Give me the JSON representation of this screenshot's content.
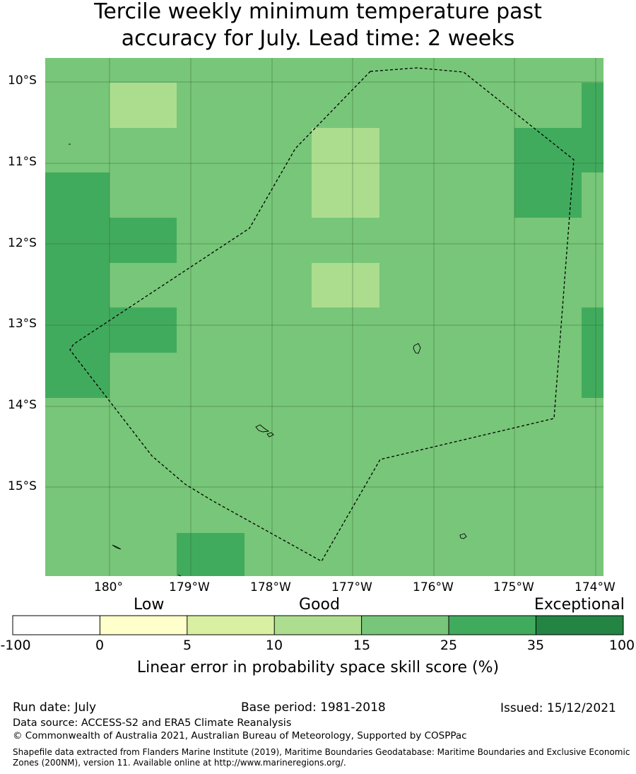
{
  "title": {
    "line1": "Tercile weekly minimum temperature past",
    "line2": "accuracy for July. Lead time: 2 weeks"
  },
  "map": {
    "lat_labels": [
      "10°S",
      "11°S",
      "12°S",
      "13°S",
      "14°S",
      "15°S"
    ],
    "lon_labels": [
      "180°",
      "179°W",
      "178°W",
      "177°W",
      "176°W",
      "175°W",
      "174°W"
    ],
    "colors": {
      "c10_15": "#acdd8e",
      "c15_25": "#78c679",
      "c25_35": "#41ab5d",
      "boundary": "#000000"
    }
  },
  "colorbar": {
    "category_labels": [
      "Low",
      "Good",
      "Exceptional"
    ],
    "ticks": [
      "-100",
      "0",
      "5",
      "10",
      "15",
      "25",
      "35",
      "100"
    ],
    "colors": [
      "#ffffff",
      "#ffffcc",
      "#d9f0a3",
      "#addd8e",
      "#78c679",
      "#41ab5d",
      "#238443"
    ],
    "axis_label": "Linear error in probability space skill score (%)"
  },
  "footer": {
    "run_date": "Run date: July",
    "base_period": "Base period: 1981-2018",
    "issued": "Issued: 15/12/2021",
    "data_source": "Data source: ACCESS-S2 and ERA5 Climate Reanalysis",
    "copyright": "© Commonwealth of Australia 2021, Australian Bureau of Meteorology, Supported by COSPPac",
    "shapefile": "Shapefile data extracted from Flanders Marine Institute (2019), Maritime Boundaries Geodatabase: Maritime Boundaries and Exclusive Economic Zones (200NM), version 11. Available online at http://www.marineregions.org/."
  }
}
